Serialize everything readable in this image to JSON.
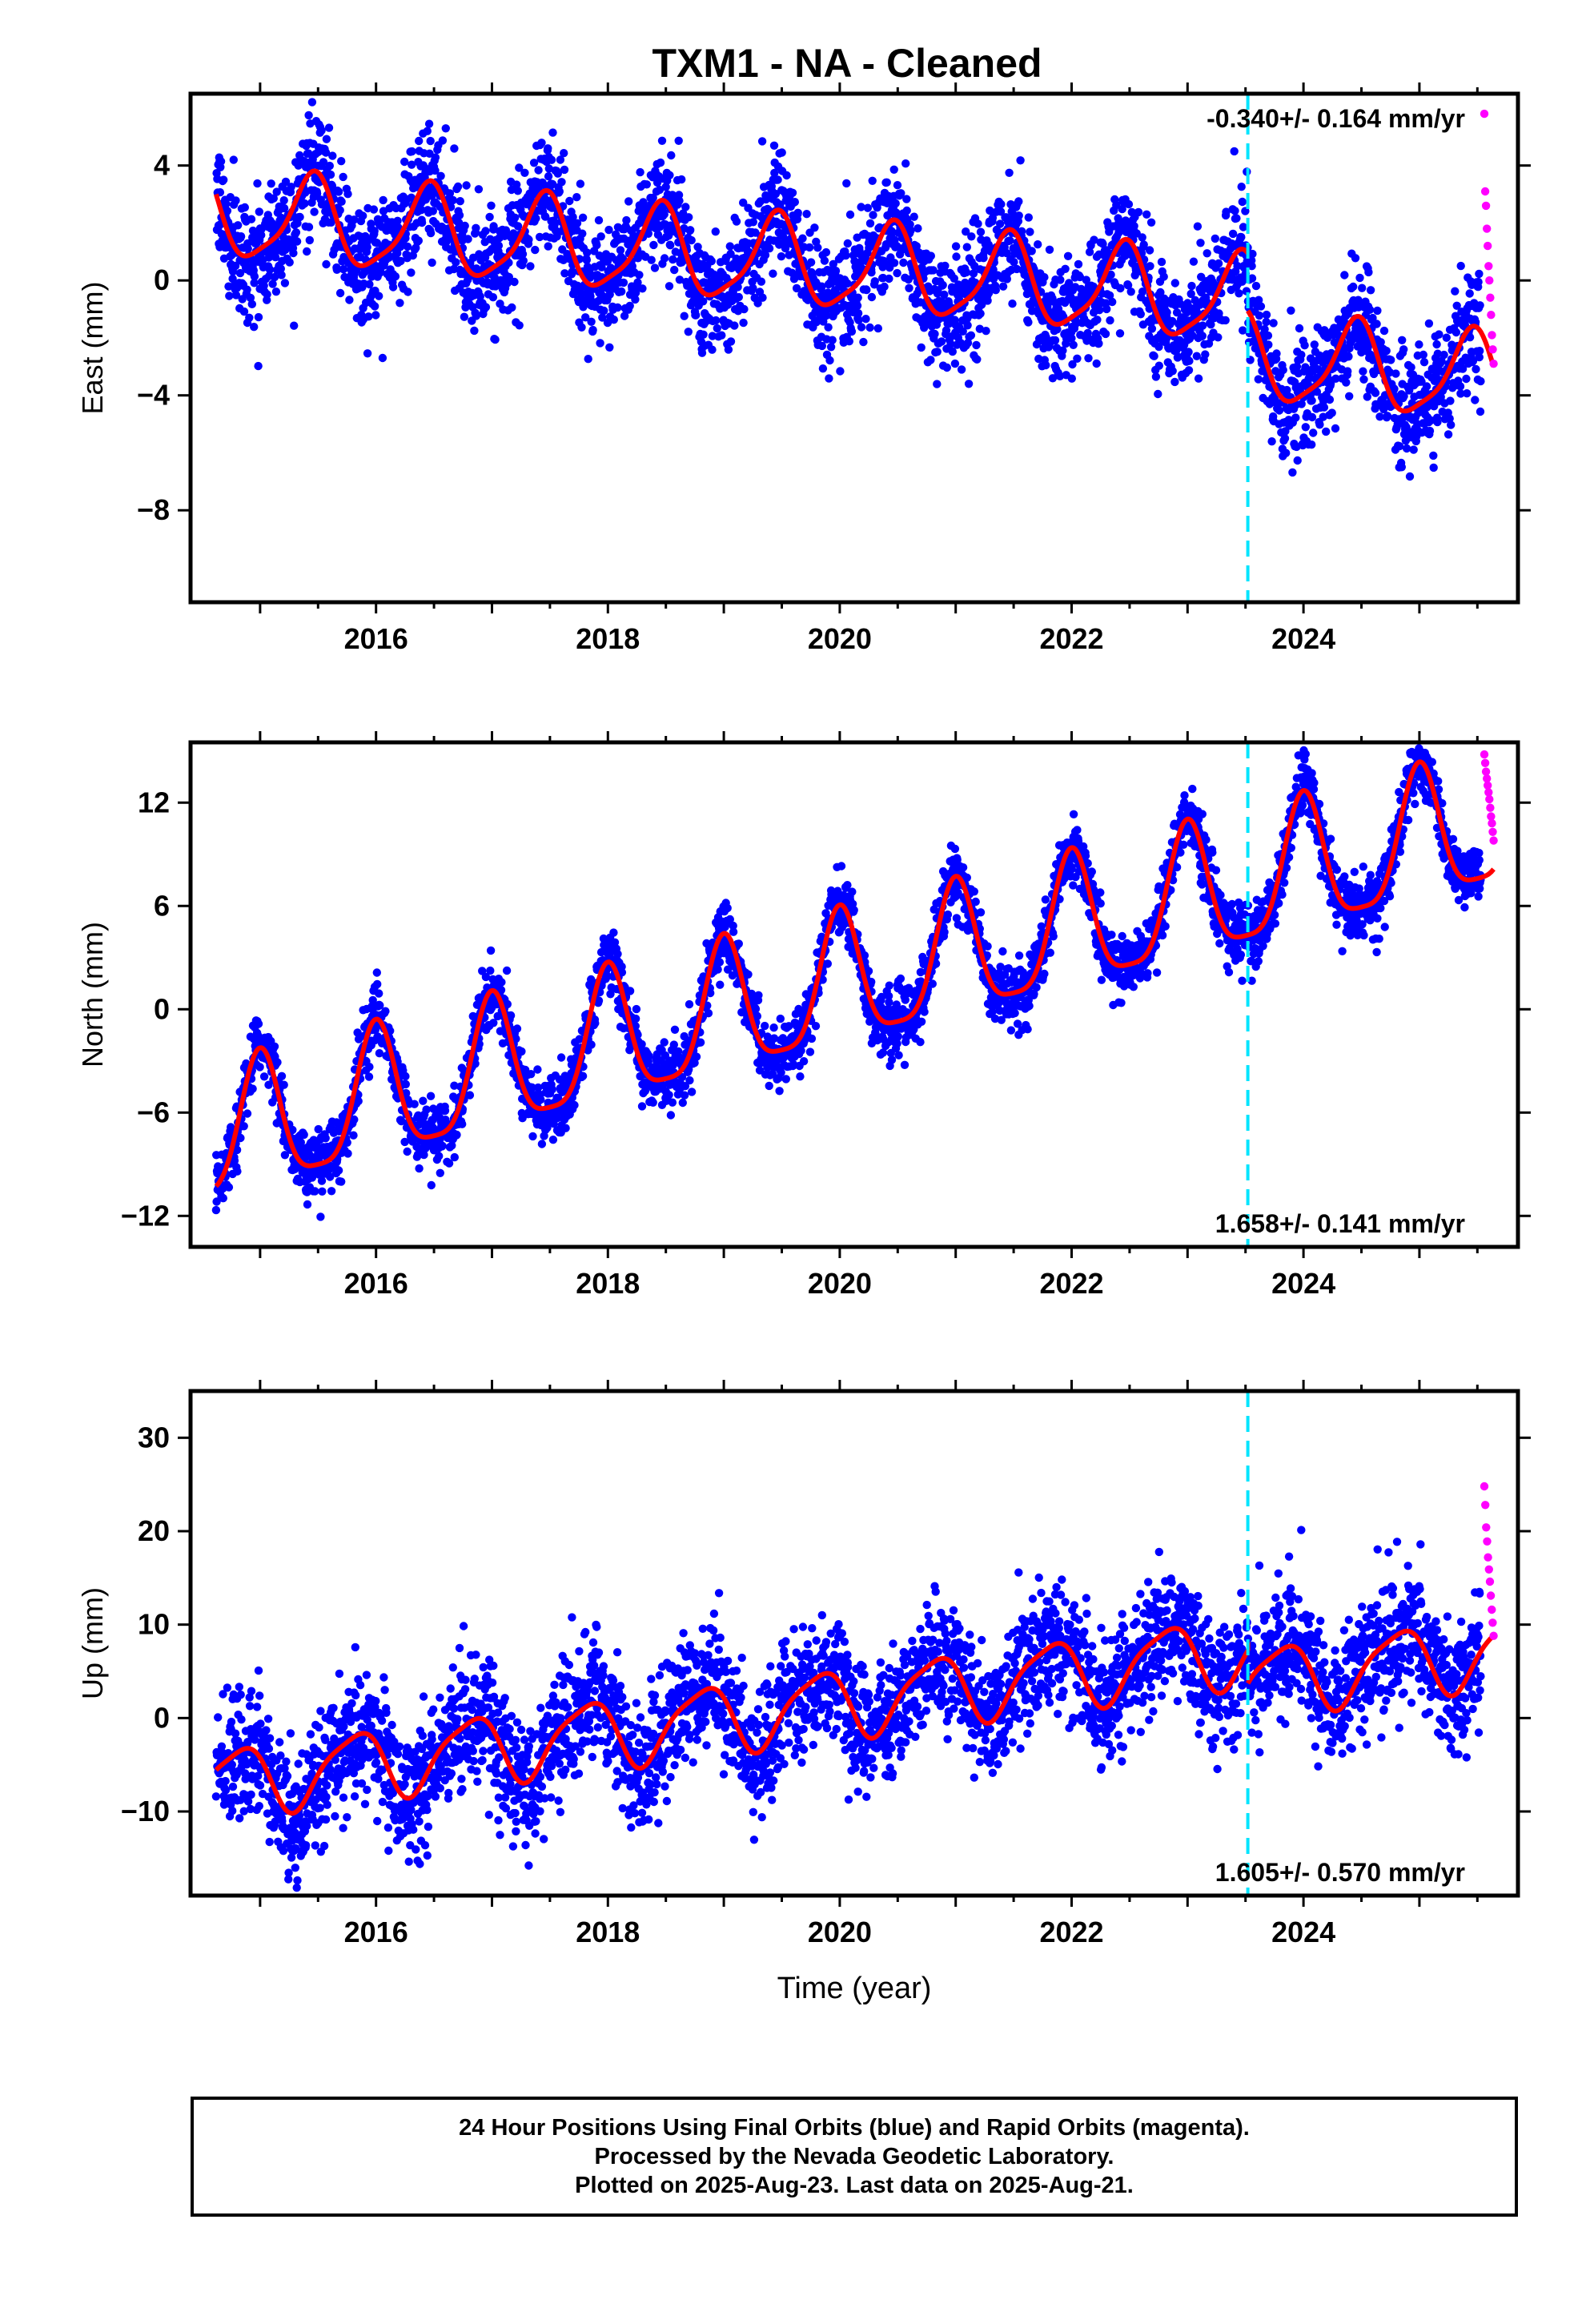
{
  "title": "TXM1  - NA - Cleaned",
  "colors": {
    "final_orbits": "#0000ff",
    "rapid_orbits": "#ff00ff",
    "model_fit": "#ff0000",
    "offset_line": "#00e5ff"
  },
  "chart_data": [
    {
      "type": "scatter",
      "panel": "East",
      "ylabel": "East (mm)",
      "xlabel": "",
      "xlim": [
        2014.4,
        2025.85
      ],
      "ylim": [
        -11.2,
        6.5
      ],
      "yticks": [
        4,
        0,
        -4,
        -8
      ],
      "ytick_labels": [
        "4",
        "0",
        "−4",
        "−8"
      ],
      "xticks": [
        2016,
        2018,
        2020,
        2022,
        2024
      ],
      "xtick_labels": [
        "2016",
        "2018",
        "2020",
        "2022",
        "2024"
      ],
      "rate_label": "-0.340+/- 0.164 mm/yr",
      "rate_position": "top-right",
      "offset_year": 2023.52,
      "data_start": 2014.62,
      "final_end": 2025.53,
      "rapid_end": 2025.64,
      "trend": {
        "intercept": 2.3,
        "slope": -0.34,
        "annual_amp": 1.5,
        "annual_phase": 2.8,
        "semiannual_amp": 0.35,
        "offset": -2.0,
        "scatter": 1.0
      },
      "rapid_values": [
        5.8,
        3.1,
        2.6,
        1.8,
        1.2,
        0.5,
        0.0,
        -0.6,
        -1.2,
        -1.9,
        -2.4,
        -2.9
      ],
      "series": [
        {
          "name": "Final Orbits",
          "color": "#0000ff"
        },
        {
          "name": "Rapid Orbits",
          "color": "#ff00ff"
        },
        {
          "name": "Model",
          "color": "#ff0000"
        }
      ]
    },
    {
      "type": "scatter",
      "panel": "North",
      "ylabel": "North (mm)",
      "xlabel": "",
      "xlim": [
        2014.4,
        2025.85
      ],
      "ylim": [
        -13.8,
        15.5
      ],
      "yticks": [
        12,
        6,
        0,
        -6,
        -12
      ],
      "ytick_labels": [
        "12",
        "6",
        "0",
        "−6",
        "−12"
      ],
      "xticks": [
        2016,
        2018,
        2020,
        2022,
        2024
      ],
      "xtick_labels": [
        "2016",
        "2018",
        "2020",
        "2022",
        "2024"
      ],
      "rate_label": "1.658+/- 0.141 mm/yr",
      "rate_position": "bottom-right",
      "offset_year": 2023.52,
      "data_start": 2014.62,
      "final_end": 2025.53,
      "rapid_end": 2025.64,
      "trend": {
        "intercept": -7.6,
        "slope": 1.66,
        "annual_amp": 3.8,
        "annual_phase": 0.0,
        "semiannual_amp": 0.9,
        "offset": 0.0,
        "scatter": 0.9
      },
      "rapid_values": [
        14.8,
        14.3,
        13.8,
        13.4,
        13.0,
        12.6,
        12.2,
        11.7,
        11.2,
        10.8,
        10.3,
        9.8
      ],
      "series": [
        {
          "name": "Final Orbits",
          "color": "#0000ff"
        },
        {
          "name": "Rapid Orbits",
          "color": "#ff00ff"
        },
        {
          "name": "Model",
          "color": "#ff0000"
        }
      ]
    },
    {
      "type": "scatter",
      "panel": "Up",
      "ylabel": "Up (mm)",
      "xlabel": "Time (year)",
      "xlim": [
        2014.4,
        2025.85
      ],
      "ylim": [
        -19,
        35
      ],
      "yticks": [
        30,
        20,
        10,
        0,
        -10
      ],
      "ytick_labels": [
        "30",
        "20",
        "10",
        "0",
        "−10"
      ],
      "xticks": [
        2016,
        2018,
        2020,
        2022,
        2024
      ],
      "xtick_labels": [
        "2016",
        "2018",
        "2020",
        "2022",
        "2024"
      ],
      "rate_label": "1.605+/- 0.570 mm/yr",
      "rate_position": "bottom-right",
      "offset_year": 2023.52,
      "data_start": 2014.62,
      "final_end": 2025.53,
      "rapid_end": 2025.64,
      "trend": {
        "intercept": -7.0,
        "slope": 1.605,
        "annual_amp": 3.6,
        "annual_phase": -1.2,
        "semiannual_amp": 0.8,
        "offset": -3.5,
        "scatter": 3.4
      },
      "rapid_values": [
        24.8,
        22.8,
        20.4,
        18.9,
        17.2,
        15.9,
        14.6,
        13.1,
        11.6,
        10.2,
        8.8
      ],
      "series": [
        {
          "name": "Final Orbits",
          "color": "#0000ff"
        },
        {
          "name": "Rapid Orbits",
          "color": "#ff00ff"
        },
        {
          "name": "Model",
          "color": "#ff0000"
        }
      ]
    }
  ],
  "footer": {
    "line1": "24 Hour Positions Using Final Orbits (blue) and Rapid Orbits (magenta).",
    "line2": "Processed by the Nevada Geodetic Laboratory.",
    "line3": "Plotted on 2025-Aug-23. Last data on 2025-Aug-21."
  }
}
